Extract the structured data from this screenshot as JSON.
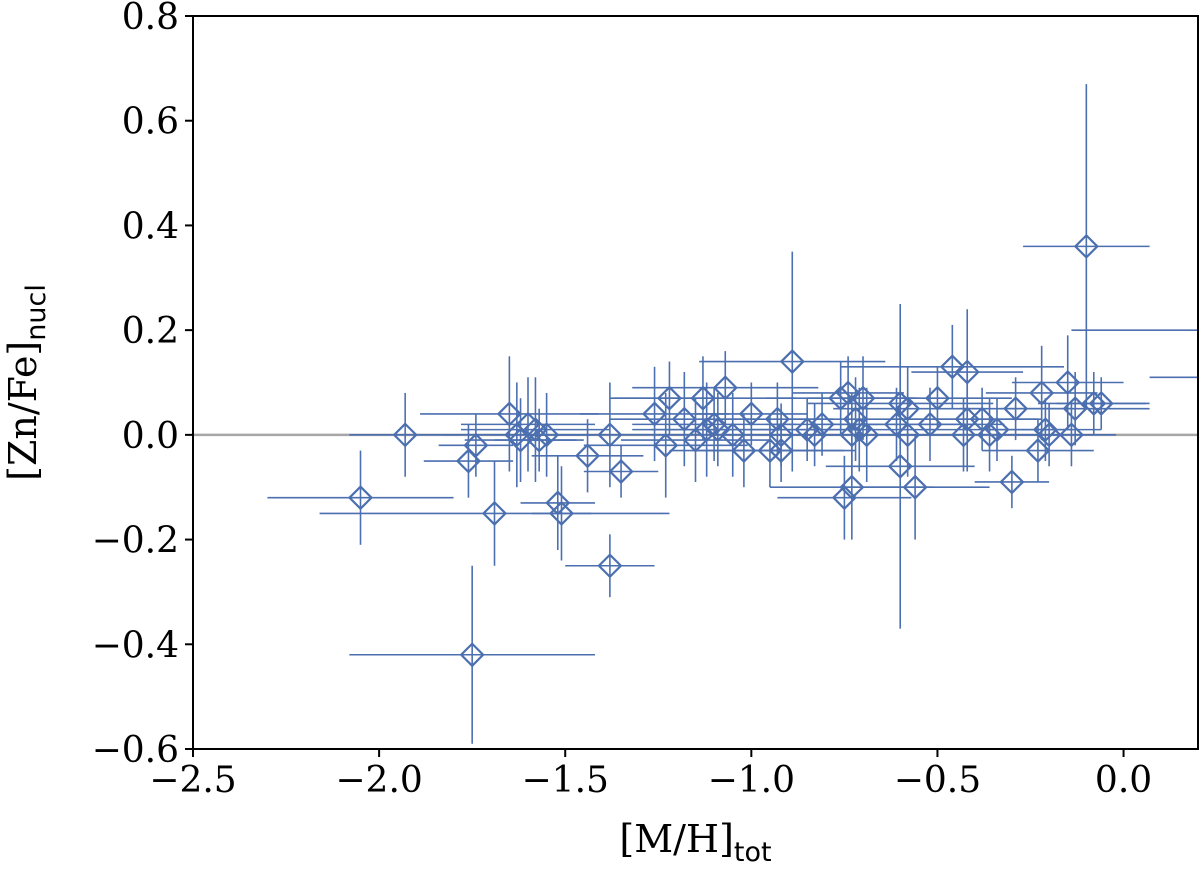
{
  "chart_data": {
    "type": "scatter",
    "title": "",
    "xlabel": "[M/H]",
    "xlabel_sub": "tot",
    "ylabel": "[Zn/Fe]",
    "ylabel_sub": "nucl",
    "xlim": [
      -2.5,
      0.2
    ],
    "ylim": [
      -0.6,
      0.8
    ],
    "xticks": [
      -2.5,
      -2.0,
      -1.5,
      -1.0,
      -0.5,
      0.0
    ],
    "xtick_labels": [
      "−2.5",
      "−2.0",
      "−1.5",
      "−1.0",
      "−0.5",
      "0.0"
    ],
    "yticks": [
      -0.6,
      -0.4,
      -0.2,
      0.0,
      0.2,
      0.4,
      0.6,
      0.8
    ],
    "ytick_labels": [
      "−0.6",
      "−0.4",
      "−0.2",
      "0.0",
      "0.2",
      "0.4",
      "0.6",
      "0.8"
    ],
    "reference_line_y": 0.0,
    "marker": "diamond-open",
    "colors": {
      "series": "#4c6fb0",
      "reference_line": "#a6a6a6",
      "axes": "#000000"
    },
    "points": [
      {
        "x": -2.05,
        "y": -0.12,
        "xerr": 0.25,
        "yerr": 0.09
      },
      {
        "x": -1.93,
        "y": 0.0,
        "xerr": 0.15,
        "yerr": 0.08
      },
      {
        "x": -1.76,
        "y": -0.05,
        "xerr": 0.12,
        "yerr": 0.07
      },
      {
        "x": -1.75,
        "y": -0.42,
        "xerr": 0.33,
        "yerr": 0.17
      },
      {
        "x": -1.74,
        "y": -0.02,
        "xerr": 0.1,
        "yerr": 0.06
      },
      {
        "x": -1.69,
        "y": -0.15,
        "xerr": 0.47,
        "yerr": 0.1
      },
      {
        "x": -1.65,
        "y": 0.04,
        "xerr": 0.24,
        "yerr": 0.11
      },
      {
        "x": -1.63,
        "y": 0.0,
        "xerr": 0.2,
        "yerr": 0.1
      },
      {
        "x": -1.62,
        "y": -0.01,
        "xerr": 0.15,
        "yerr": 0.08
      },
      {
        "x": -1.6,
        "y": 0.02,
        "xerr": 0.18,
        "yerr": 0.09
      },
      {
        "x": -1.58,
        "y": 0.01,
        "xerr": 0.2,
        "yerr": 0.1
      },
      {
        "x": -1.57,
        "y": -0.01,
        "xerr": 0.12,
        "yerr": 0.06
      },
      {
        "x": -1.55,
        "y": 0.0,
        "xerr": 0.15,
        "yerr": 0.08
      },
      {
        "x": -1.52,
        "y": -0.13,
        "xerr": 0.1,
        "yerr": 0.09
      },
      {
        "x": -1.51,
        "y": -0.15,
        "xerr": 0.08,
        "yerr": 0.09
      },
      {
        "x": -1.44,
        "y": -0.04,
        "xerr": 0.15,
        "yerr": 0.07
      },
      {
        "x": -1.38,
        "y": 0.0,
        "xerr": 0.2,
        "yerr": 0.1
      },
      {
        "x": -1.38,
        "y": -0.25,
        "xerr": 0.12,
        "yerr": 0.06
      },
      {
        "x": -1.35,
        "y": -0.07,
        "xerr": 0.1,
        "yerr": 0.05
      },
      {
        "x": -1.26,
        "y": 0.04,
        "xerr": 0.2,
        "yerr": 0.09
      },
      {
        "x": -1.23,
        "y": -0.02,
        "xerr": 0.22,
        "yerr": 0.1
      },
      {
        "x": -1.22,
        "y": 0.07,
        "xerr": 0.15,
        "yerr": 0.07
      },
      {
        "x": -1.18,
        "y": 0.03,
        "xerr": 0.2,
        "yerr": 0.09
      },
      {
        "x": -1.15,
        "y": -0.01,
        "xerr": 0.2,
        "yerr": 0.08
      },
      {
        "x": -1.13,
        "y": 0.07,
        "xerr": 0.25,
        "yerr": 0.08
      },
      {
        "x": -1.12,
        "y": 0.01,
        "xerr": 0.2,
        "yerr": 0.09
      },
      {
        "x": -1.1,
        "y": 0.02,
        "xerr": 0.22,
        "yerr": 0.07
      },
      {
        "x": -1.09,
        "y": 0.01,
        "xerr": 0.18,
        "yerr": 0.07
      },
      {
        "x": -1.07,
        "y": 0.09,
        "xerr": 0.25,
        "yerr": 0.07
      },
      {
        "x": -1.05,
        "y": 0.0,
        "xerr": 0.2,
        "yerr": 0.08
      },
      {
        "x": -1.02,
        "y": -0.03,
        "xerr": 0.2,
        "yerr": 0.07
      },
      {
        "x": -1.0,
        "y": 0.04,
        "xerr": 0.15,
        "yerr": 0.06
      },
      {
        "x": -0.95,
        "y": -0.03,
        "xerr": 0.2,
        "yerr": 0.07
      },
      {
        "x": -0.93,
        "y": 0.03,
        "xerr": 0.15,
        "yerr": 0.07
      },
      {
        "x": -0.92,
        "y": 0.0,
        "xerr": 0.18,
        "yerr": 0.06
      },
      {
        "x": -0.92,
        "y": -0.03,
        "xerr": 0.2,
        "yerr": 0.06
      },
      {
        "x": -0.89,
        "y": 0.14,
        "xerr": 0.25,
        "yerr": 0.21
      },
      {
        "x": -0.85,
        "y": 0.01,
        "xerr": 0.15,
        "yerr": 0.06
      },
      {
        "x": -0.83,
        "y": 0.0,
        "xerr": 0.15,
        "yerr": 0.06
      },
      {
        "x": -0.81,
        "y": 0.02,
        "xerr": 0.15,
        "yerr": 0.06
      },
      {
        "x": -0.76,
        "y": 0.07,
        "xerr": 0.2,
        "yerr": 0.07
      },
      {
        "x": -0.75,
        "y": -0.12,
        "xerr": 0.18,
        "yerr": 0.08
      },
      {
        "x": -0.74,
        "y": 0.08,
        "xerr": 0.15,
        "yerr": 0.07
      },
      {
        "x": -0.73,
        "y": 0.0,
        "xerr": 0.2,
        "yerr": 0.08
      },
      {
        "x": -0.73,
        "y": -0.1,
        "xerr": 0.22,
        "yerr": 0.1
      },
      {
        "x": -0.72,
        "y": 0.03,
        "xerr": 0.18,
        "yerr": 0.08
      },
      {
        "x": -0.71,
        "y": 0.01,
        "xerr": 0.2,
        "yerr": 0.08
      },
      {
        "x": -0.7,
        "y": 0.07,
        "xerr": 0.15,
        "yerr": 0.08
      },
      {
        "x": -0.69,
        "y": 0.0,
        "xerr": 0.2,
        "yerr": 0.09
      },
      {
        "x": -0.61,
        "y": 0.02,
        "xerr": 0.2,
        "yerr": 0.07
      },
      {
        "x": -0.6,
        "y": 0.06,
        "xerr": 0.25,
        "yerr": 0.08
      },
      {
        "x": -0.6,
        "y": -0.06,
        "xerr": 0.2,
        "yerr": 0.31
      },
      {
        "x": -0.58,
        "y": 0.05,
        "xerr": 0.2,
        "yerr": 0.08
      },
      {
        "x": -0.58,
        "y": 0.0,
        "xerr": 0.15,
        "yerr": 0.08
      },
      {
        "x": -0.56,
        "y": -0.1,
        "xerr": 0.2,
        "yerr": 0.1
      },
      {
        "x": -0.52,
        "y": 0.02,
        "xerr": 0.2,
        "yerr": 0.07
      },
      {
        "x": -0.5,
        "y": 0.07,
        "xerr": 0.2,
        "yerr": 0.06
      },
      {
        "x": -0.46,
        "y": 0.13,
        "xerr": 0.3,
        "yerr": 0.08
      },
      {
        "x": -0.43,
        "y": 0.0,
        "xerr": 0.2,
        "yerr": 0.07
      },
      {
        "x": -0.42,
        "y": 0.03,
        "xerr": 0.2,
        "yerr": 0.1
      },
      {
        "x": -0.42,
        "y": 0.12,
        "xerr": 0.15,
        "yerr": 0.12
      },
      {
        "x": -0.38,
        "y": 0.03,
        "xerr": 0.15,
        "yerr": 0.06
      },
      {
        "x": -0.36,
        "y": 0.0,
        "xerr": 0.2,
        "yerr": 0.07
      },
      {
        "x": -0.34,
        "y": 0.01,
        "xerr": 0.2,
        "yerr": 0.06
      },
      {
        "x": -0.3,
        "y": -0.09,
        "xerr": 0.1,
        "yerr": 0.05
      },
      {
        "x": -0.29,
        "y": 0.05,
        "xerr": 0.15,
        "yerr": 0.06
      },
      {
        "x": -0.23,
        "y": -0.03,
        "xerr": 0.15,
        "yerr": 0.06
      },
      {
        "x": -0.22,
        "y": 0.08,
        "xerr": 0.15,
        "yerr": 0.09
      },
      {
        "x": -0.21,
        "y": 0.01,
        "xerr": 0.15,
        "yerr": 0.06
      },
      {
        "x": -0.2,
        "y": 0.0,
        "xerr": 0.12,
        "yerr": 0.06
      },
      {
        "x": -0.15,
        "y": 0.1,
        "xerr": 0.15,
        "yerr": 0.09
      },
      {
        "x": -0.14,
        "y": 0.0,
        "xerr": 0.12,
        "yerr": 0.06
      },
      {
        "x": -0.13,
        "y": 0.05,
        "xerr": 0.2,
        "yerr": 0.07
      },
      {
        "x": -0.1,
        "y": 0.36,
        "xerr": 0.17,
        "yerr": 0.31
      },
      {
        "x": -0.08,
        "y": 0.06,
        "xerr": 0.15,
        "yerr": 0.06
      },
      {
        "x": -0.06,
        "y": 0.06,
        "xerr": 0.12,
        "yerr": 0.05
      }
    ],
    "open_error_bars": [
      {
        "x": 0.06,
        "y": 0.2,
        "xerr": 0.2
      },
      {
        "x": 0.15,
        "y": 0.11,
        "xerr": 0.08
      }
    ]
  }
}
